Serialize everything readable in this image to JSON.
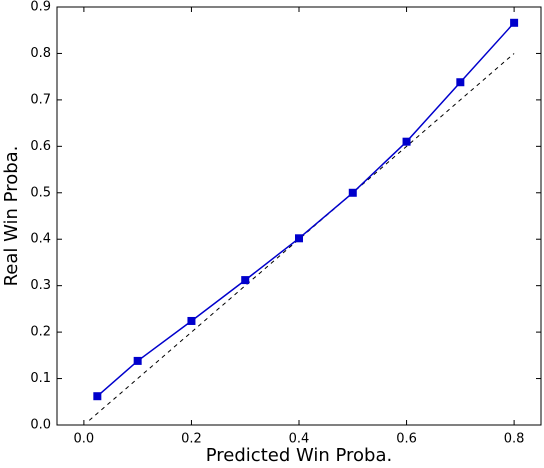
{
  "chart_data": {
    "type": "line",
    "x_label": "Predicted Win Proba.",
    "y_label": "Real Win Proba.",
    "x": [
      0.025,
      0.1,
      0.2,
      0.3,
      0.4,
      0.5,
      0.6,
      0.7,
      0.8
    ],
    "series": [
      {
        "color": "#0000cc",
        "marker": "square",
        "values": [
          0.062,
          0.138,
          0.224,
          0.312,
          0.402,
          0.5,
          0.61,
          0.738,
          0.866
        ]
      }
    ],
    "reference": {
      "x": [
        0.01,
        0.8
      ],
      "values": [
        0.01,
        0.8
      ],
      "color": "#000000",
      "dashed": true
    },
    "xlim": [
      -0.05,
      0.85
    ],
    "ylim": [
      0,
      0.9
    ],
    "xticks": [
      {
        "value": 0,
        "label": "0.0"
      },
      0.2,
      0.4,
      0.6,
      0.8
    ],
    "yticks": [
      {
        "value": 0,
        "label": "0.0"
      },
      0.1,
      0.2,
      0.3,
      0.4,
      0.5,
      0.6,
      0.7,
      0.8,
      0.9
    ],
    "grid": false
  }
}
